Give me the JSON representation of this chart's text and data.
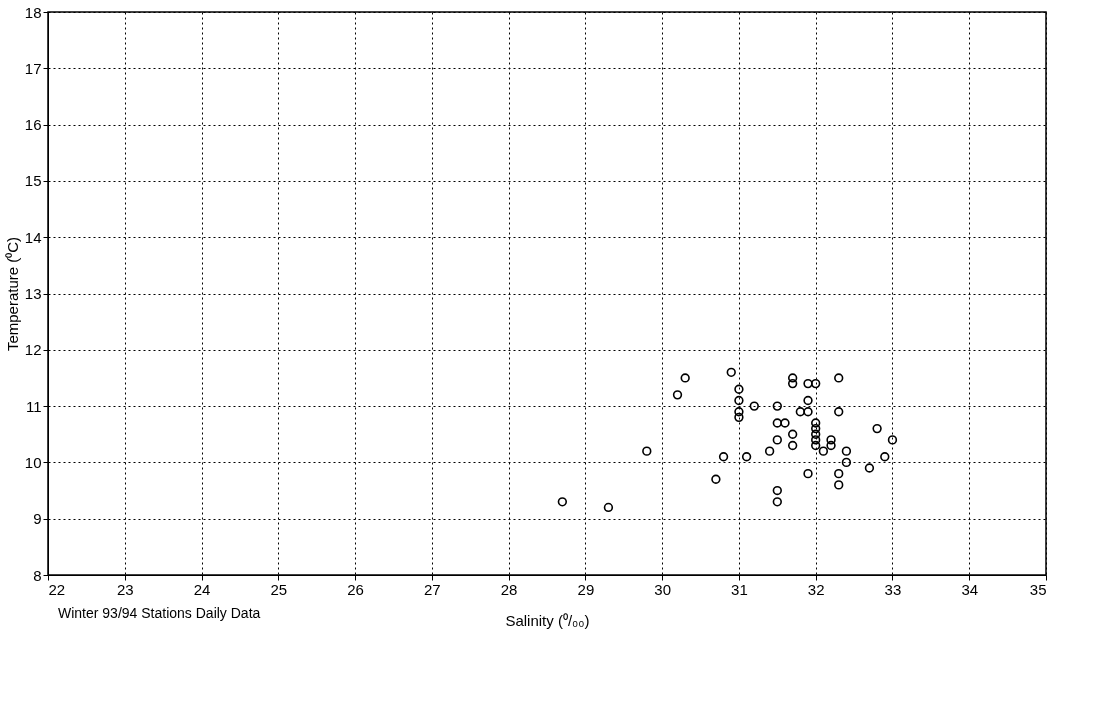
{
  "chart_data": {
    "type": "scatter",
    "xlabel": "Salinity (⁰/₀₀)",
    "ylabel": "Temperature (⁰C)",
    "annotations": [
      "Winter 93/94 Stations Daily Data"
    ],
    "x": [
      28.7,
      29.3,
      29.8,
      30.2,
      30.3,
      30.7,
      30.8,
      30.9,
      31.0,
      31.0,
      31.0,
      31.0,
      31.1,
      31.2,
      31.4,
      31.5,
      31.5,
      31.5,
      31.5,
      31.5,
      31.6,
      31.7,
      31.7,
      31.7,
      31.7,
      31.8,
      31.9,
      31.9,
      31.9,
      31.9,
      32.0,
      32.0,
      32.0,
      32.0,
      32.0,
      32.0,
      32.1,
      32.2,
      32.2,
      32.3,
      32.3,
      32.3,
      32.3,
      32.4,
      32.4,
      32.7,
      32.8,
      32.9,
      33.0
    ],
    "series": [
      {
        "color": "#000000",
        "values": [
          9.3,
          9.2,
          10.2,
          11.2,
          11.5,
          9.7,
          10.1,
          11.6,
          11.3,
          11.1,
          10.9,
          10.8,
          10.1,
          11.0,
          10.2,
          11.0,
          10.7,
          10.4,
          9.5,
          9.3,
          10.7,
          11.5,
          11.4,
          10.5,
          10.3,
          10.9,
          11.4,
          11.1,
          10.9,
          9.8,
          11.4,
          10.7,
          10.6,
          10.5,
          10.4,
          10.3,
          10.2,
          10.4,
          10.3,
          11.5,
          10.9,
          9.8,
          9.6,
          10.2,
          10.0,
          9.9,
          10.6,
          10.1,
          10.4
        ]
      }
    ],
    "xlim": [
      22,
      35
    ],
    "xticks": [
      22,
      23,
      24,
      25,
      26,
      27,
      28,
      29,
      30,
      31,
      32,
      33,
      34,
      35
    ],
    "ylim": [
      8,
      18
    ],
    "yticks": [
      8,
      9,
      10,
      11,
      12,
      13,
      14,
      15,
      16,
      17,
      18
    ],
    "grid": true,
    "marker": "circle"
  }
}
